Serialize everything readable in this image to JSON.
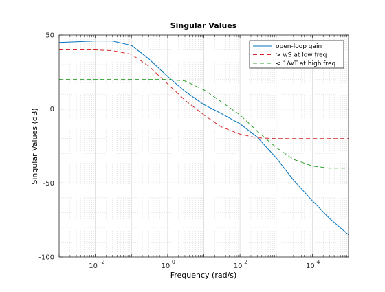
{
  "chart_data": {
    "type": "line",
    "title": "Singular Values",
    "xlabel": "Frequency (rad/s)",
    "ylabel": "Singular Values (dB)",
    "xscale": "log",
    "xlim": [
      0.001,
      100000
    ],
    "ylim": [
      -100,
      50
    ],
    "xticks": [
      {
        "value": 0.01,
        "base": "10",
        "exp": "-2"
      },
      {
        "value": 1,
        "base": "10",
        "exp": "0"
      },
      {
        "value": 100,
        "base": "10",
        "exp": "2"
      },
      {
        "value": 10000,
        "base": "10",
        "exp": "4"
      }
    ],
    "yticks": [
      {
        "value": 50,
        "label": "50"
      },
      {
        "value": 0,
        "label": "0"
      },
      {
        "value": -50,
        "label": "-50"
      },
      {
        "value": -100,
        "label": "-100"
      }
    ],
    "grid": true,
    "minor_grid": true,
    "legend_position": "top-right",
    "series": [
      {
        "name": "open-loop gain",
        "color": "#0072bd",
        "style": "solid",
        "points": [
          [
            0.001,
            45
          ],
          [
            0.003,
            45.5
          ],
          [
            0.01,
            46
          ],
          [
            0.03,
            46
          ],
          [
            0.1,
            43
          ],
          [
            0.3,
            34
          ],
          [
            1,
            22
          ],
          [
            3,
            12
          ],
          [
            10,
            3
          ],
          [
            30,
            -3
          ],
          [
            100,
            -10
          ],
          [
            300,
            -19
          ],
          [
            1000,
            -33
          ],
          [
            3000,
            -48
          ],
          [
            10000,
            -62
          ],
          [
            30000,
            -74
          ],
          [
            100000,
            -85
          ]
        ]
      },
      {
        "name": "> wS at low freq",
        "color": "#d62728",
        "style": "dashed",
        "points": [
          [
            0.001,
            40
          ],
          [
            0.003,
            40
          ],
          [
            0.01,
            40
          ],
          [
            0.03,
            39.5
          ],
          [
            0.1,
            37
          ],
          [
            0.3,
            29
          ],
          [
            1,
            17
          ],
          [
            3,
            6
          ],
          [
            10,
            -4
          ],
          [
            30,
            -12
          ],
          [
            100,
            -17
          ],
          [
            300,
            -19.5
          ],
          [
            1000,
            -20
          ],
          [
            10000,
            -20
          ],
          [
            100000,
            -20
          ]
        ]
      },
      {
        "name": "< 1/wT at high freq",
        "color": "#2ca02c",
        "style": "dashed",
        "points": [
          [
            0.001,
            20
          ],
          [
            0.01,
            20
          ],
          [
            0.1,
            20
          ],
          [
            1,
            20
          ],
          [
            3,
            19
          ],
          [
            10,
            13
          ],
          [
            30,
            5
          ],
          [
            100,
            -4
          ],
          [
            300,
            -15
          ],
          [
            1000,
            -26
          ],
          [
            3000,
            -34
          ],
          [
            10000,
            -38.5
          ],
          [
            30000,
            -40
          ],
          [
            100000,
            -40
          ]
        ]
      }
    ]
  }
}
